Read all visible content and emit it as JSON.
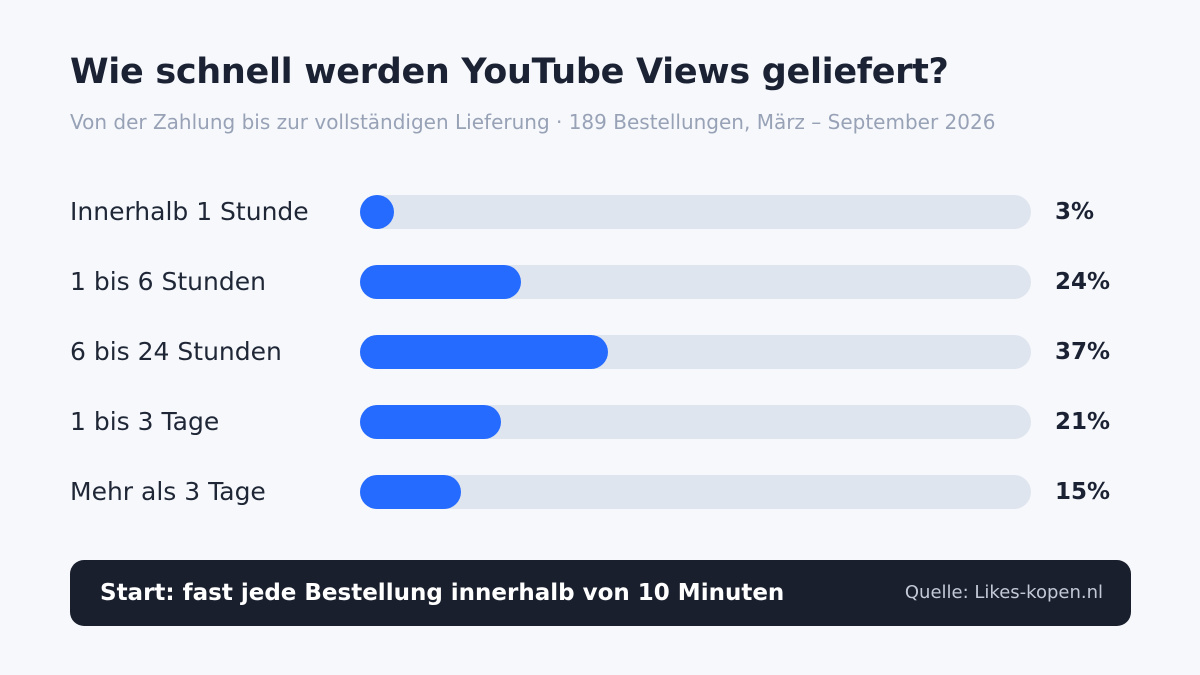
{
  "title": "Wie schnell werden YouTube Views geliefert?",
  "subtitle": "Von der Zahlung bis zur vollständigen Lieferung · 189 Bestellungen, März – September 2026",
  "chart_data": {
    "type": "bar",
    "orientation": "horizontal",
    "categories": [
      "Innerhalb 1 Stunde",
      "1 bis 6 Stunden",
      "6 bis 24 Stunden",
      "1 bis 3 Tage",
      "Mehr als 3 Tage"
    ],
    "values": [
      3,
      24,
      37,
      21,
      15
    ],
    "value_labels": [
      "3%",
      "24%",
      "37%",
      "21%",
      "15%"
    ],
    "unit": "%",
    "xlim": [
      0,
      100
    ],
    "bar_color": "#256bff",
    "track_color": "#dfe5ef"
  },
  "footer": {
    "note": "Start: fast jede Bestellung innerhalb von 10 Minuten",
    "source": "Quelle: Likes-kopen.nl"
  }
}
